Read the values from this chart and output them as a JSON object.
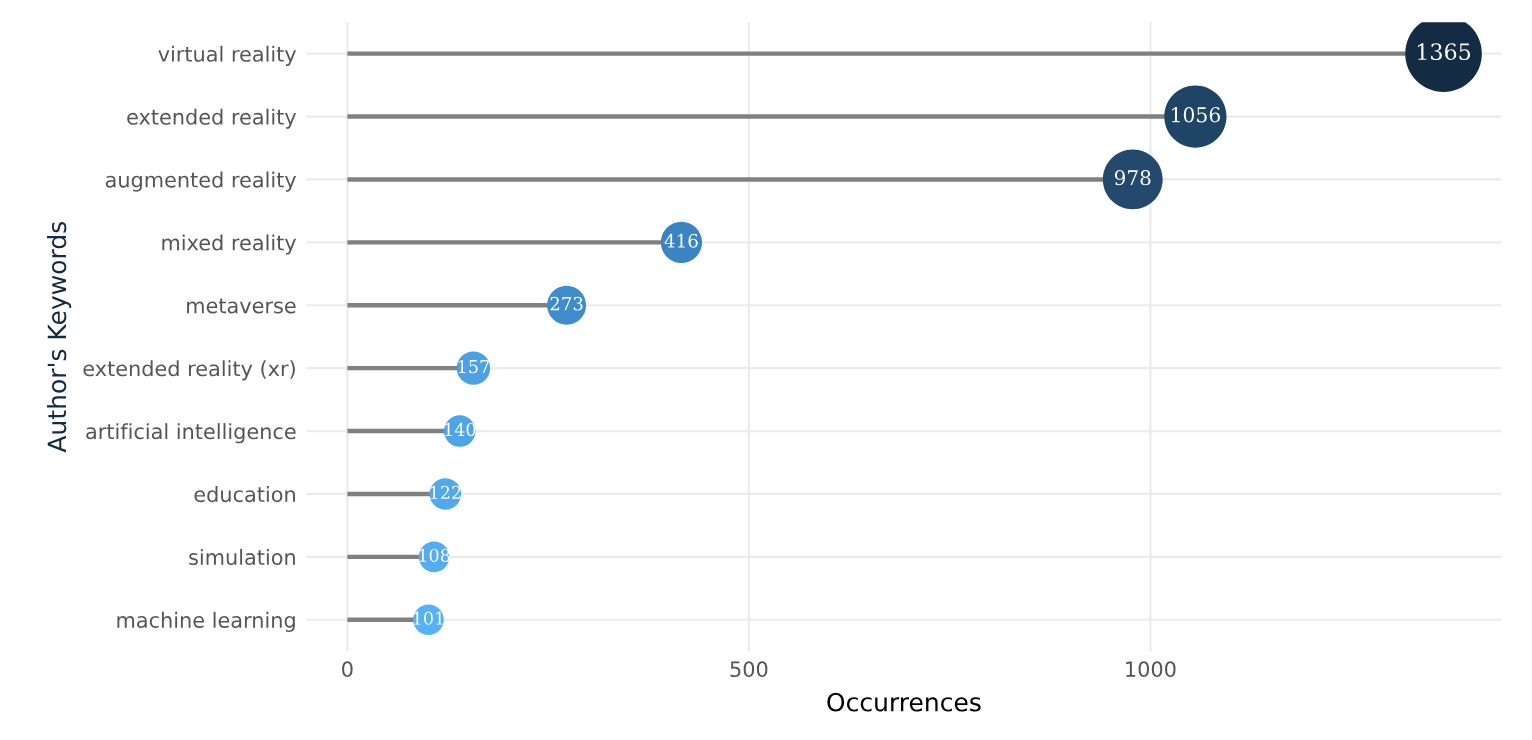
{
  "chart_data": {
    "type": "lollipop",
    "orientation": "horizontal",
    "xlabel": "Occurrences",
    "ylabel": "Author's Keywords",
    "categories": [
      "virtual reality",
      "extended reality",
      "augmented reality",
      "mixed reality",
      "metaverse",
      "extended reality (xr)",
      "artificial intelligence",
      "education",
      "simulation",
      "machine learning"
    ],
    "values": [
      1365,
      1056,
      978,
      416,
      273,
      157,
      140,
      122,
      108,
      101
    ],
    "sizes": [
      1,
      0.66,
      0.61,
      0.29,
      0.26,
      0.19,
      0.17,
      0.17,
      0.16,
      0.16
    ],
    "colors": [
      "#132b43",
      "#1f4566",
      "#23496d",
      "#3a84c2",
      "#3e8ccb",
      "#4ba1e4",
      "#4ea4e8",
      "#51a8ed",
      "#54acf2",
      "#56b1f7"
    ],
    "xlim": [
      -51,
      1437
    ],
    "xticks": [
      0,
      500,
      1000
    ],
    "grid": true,
    "data_labels": true,
    "marker": "circle"
  }
}
